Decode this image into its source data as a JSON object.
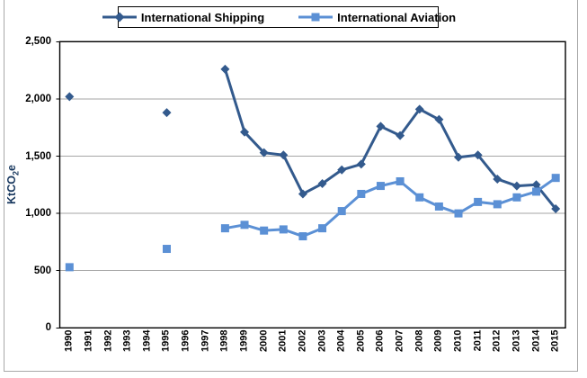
{
  "chart_data": {
    "type": "line",
    "title": "",
    "xlabel": "",
    "ylabel": "KtCO2e",
    "ylabel_parts": {
      "prefix": "KtCO",
      "sub": "2",
      "suffix": "e"
    },
    "ylim": [
      0,
      2500
    ],
    "ytick_interval": 500,
    "yticks": [
      "0",
      "500",
      "1,000",
      "1,500",
      "2,000",
      "2,500"
    ],
    "grid": true,
    "legend_position": "top",
    "categories": [
      "1990",
      "1991",
      "1992",
      "1993",
      "1994",
      "1995",
      "1996",
      "1997",
      "1998",
      "1999",
      "2000",
      "2001",
      "2002",
      "2003",
      "2004",
      "2005",
      "2006",
      "2007",
      "2008",
      "2009",
      "2010",
      "2011",
      "2012",
      "2013",
      "2014",
      "2015"
    ],
    "series": [
      {
        "name": "International Shipping",
        "marker": "diamond",
        "color": "#335a8d",
        "values": [
          2020,
          null,
          null,
          null,
          null,
          1880,
          null,
          null,
          2260,
          1710,
          1530,
          1510,
          1170,
          1260,
          1380,
          1430,
          1760,
          1680,
          1910,
          1820,
          1490,
          1510,
          1300,
          1240,
          1250,
          1040
        ]
      },
      {
        "name": "International Aviation",
        "marker": "square",
        "color": "#5b90d5",
        "values": [
          530,
          null,
          null,
          null,
          null,
          690,
          null,
          null,
          870,
          900,
          850,
          860,
          800,
          870,
          1020,
          1170,
          1240,
          1280,
          1140,
          1060,
          1000,
          1100,
          1080,
          1140,
          1190,
          1310
        ]
      }
    ]
  },
  "colors": {
    "grid": "#a6a6a6",
    "axis": "#000000",
    "tick_text": "#000000",
    "ylabel_text": "#17375e",
    "outer_border": "#a8a8a8",
    "background": "#ffffff"
  }
}
